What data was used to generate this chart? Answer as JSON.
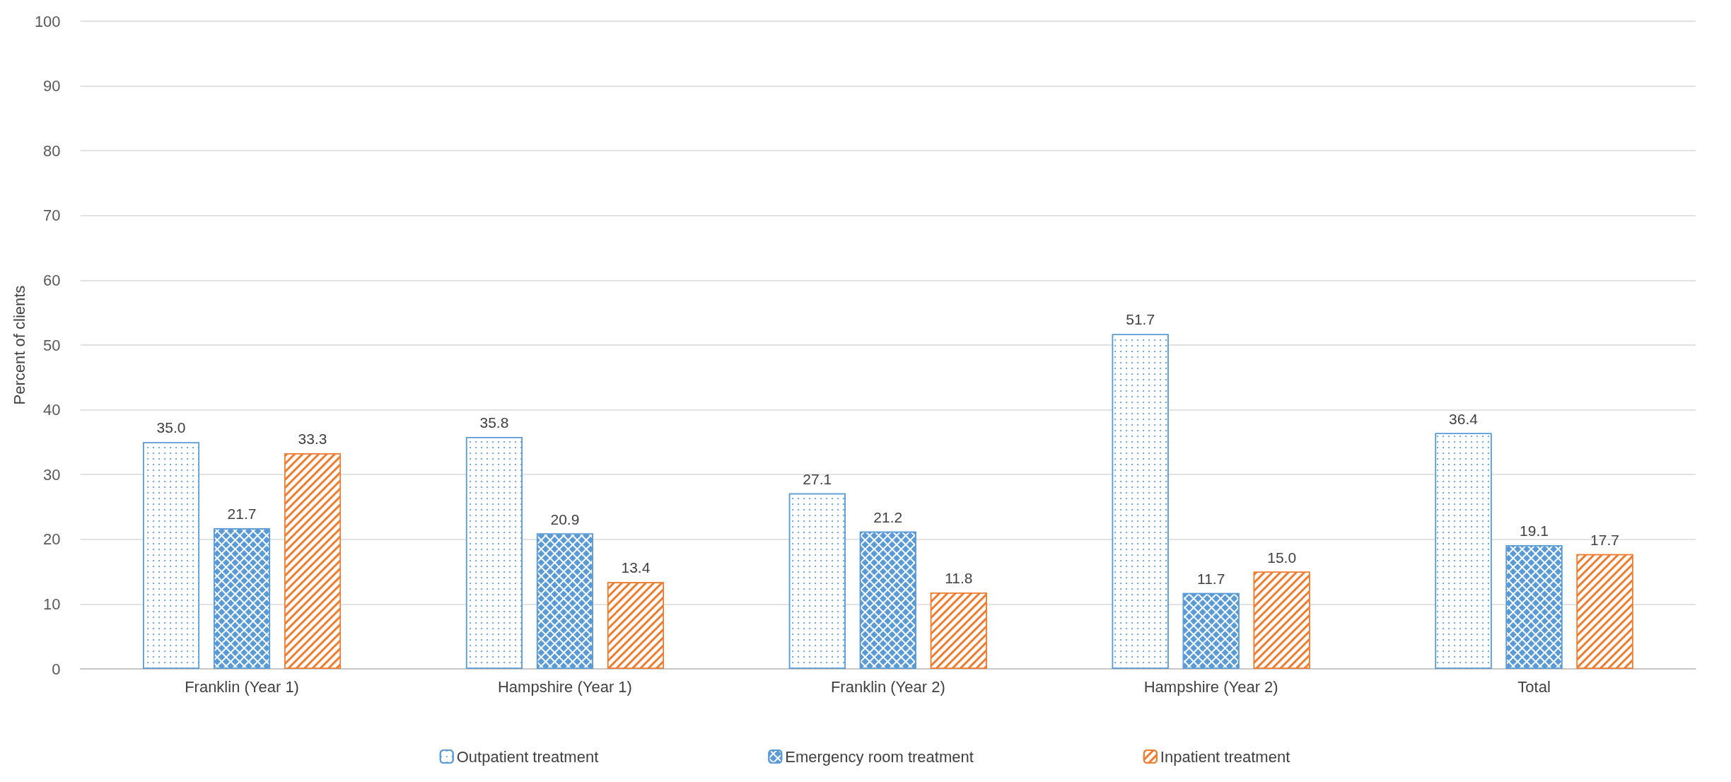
{
  "chart_data": {
    "type": "bar",
    "ylabel": "Percent of clients",
    "categories": [
      "Franklin (Year 1)",
      "Hampshire (Year 1)",
      "Franklin (Year 2)",
      "Hampshire (Year 2)",
      "Total"
    ],
    "series": [
      {
        "name": "Outpatient treatment",
        "color": "#5b9bd5",
        "values": [
          35.0,
          35.8,
          27.1,
          51.7,
          36.4
        ],
        "value_labels": [
          "35.0",
          "35.8",
          "27.1",
          "51.7",
          "36.4"
        ]
      },
      {
        "name": "Emergency room treatment",
        "color": "#5b9bd5",
        "values": [
          21.7,
          20.9,
          21.2,
          11.7,
          19.1
        ],
        "value_labels": [
          "21.7",
          "20.9",
          "21.2",
          "11.7",
          "19.1"
        ]
      },
      {
        "name": "Inpatient treatment",
        "color": "#ed7d31",
        "values": [
          33.3,
          13.4,
          11.8,
          15.0,
          17.7
        ],
        "value_labels": [
          "33.3",
          "13.4",
          "11.8",
          "15.0",
          "17.7"
        ]
      }
    ],
    "ylim": [
      0,
      100
    ],
    "yticks": [
      0,
      10,
      20,
      30,
      40,
      50,
      60,
      70,
      80,
      90,
      100
    ],
    "grid": "y",
    "legend": "bottom"
  }
}
